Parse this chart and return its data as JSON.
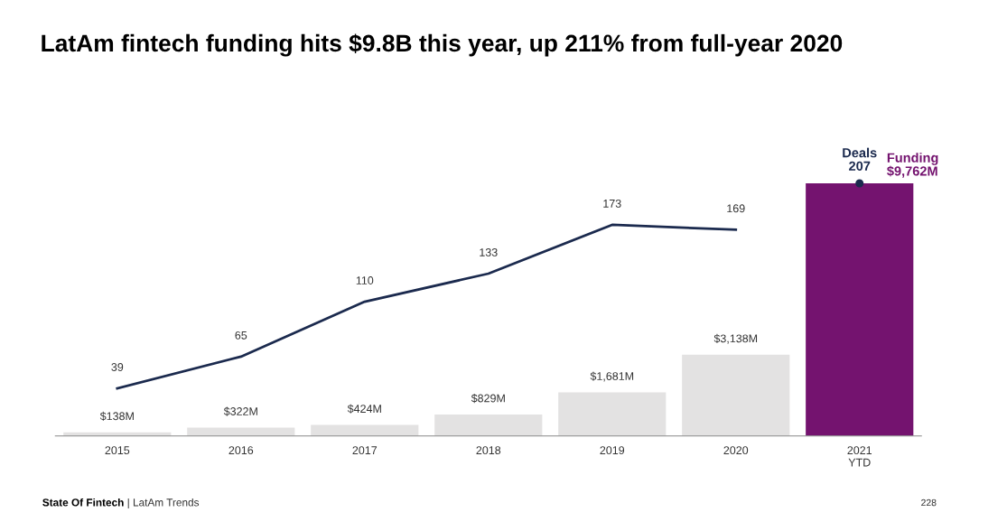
{
  "chart_data": {
    "type": "bar",
    "title": "LatAm fintech funding hits $9.8B this year, up 211% from full-year 2020",
    "categories": [
      "2015",
      "2016",
      "2017",
      "2018",
      "2019",
      "2020",
      "2021\nYTD"
    ],
    "series": [
      {
        "name": "Funding",
        "colors": [
          "#e3e2e2",
          "#e3e2e2",
          "#e3e2e2",
          "#e3e2e2",
          "#e3e2e2",
          "#e3e2e2",
          "#74136f"
        ],
        "color": "#74136f",
        "values": [
          138,
          322,
          424,
          829,
          1681,
          3138,
          9762
        ],
        "value_labels": [
          "$138M",
          "$322M",
          "$424M",
          "$829M",
          "$1,681M",
          "$3,138M",
          "$9,762M"
        ]
      },
      {
        "type": "line",
        "axis": "y2",
        "color": "#1b2a4e",
        "values": [
          39,
          65,
          110,
          133,
          173,
          169,
          null
        ],
        "value_labels": [
          "39",
          "65",
          "110",
          "133",
          "173",
          "169",
          null
        ]
      },
      {
        "name": "Deals",
        "type": "scatter",
        "axis": "y2",
        "color": "#1b2a4e",
        "values": [
          null,
          null,
          null,
          null,
          null,
          null,
          207
        ],
        "value_labels": [
          null,
          null,
          null,
          null,
          null,
          null,
          "207"
        ]
      }
    ],
    "annotations": [
      "State Of Fintech",
      "| LatAm Trends",
      "228"
    ],
    "legend": false,
    "grid": false
  }
}
